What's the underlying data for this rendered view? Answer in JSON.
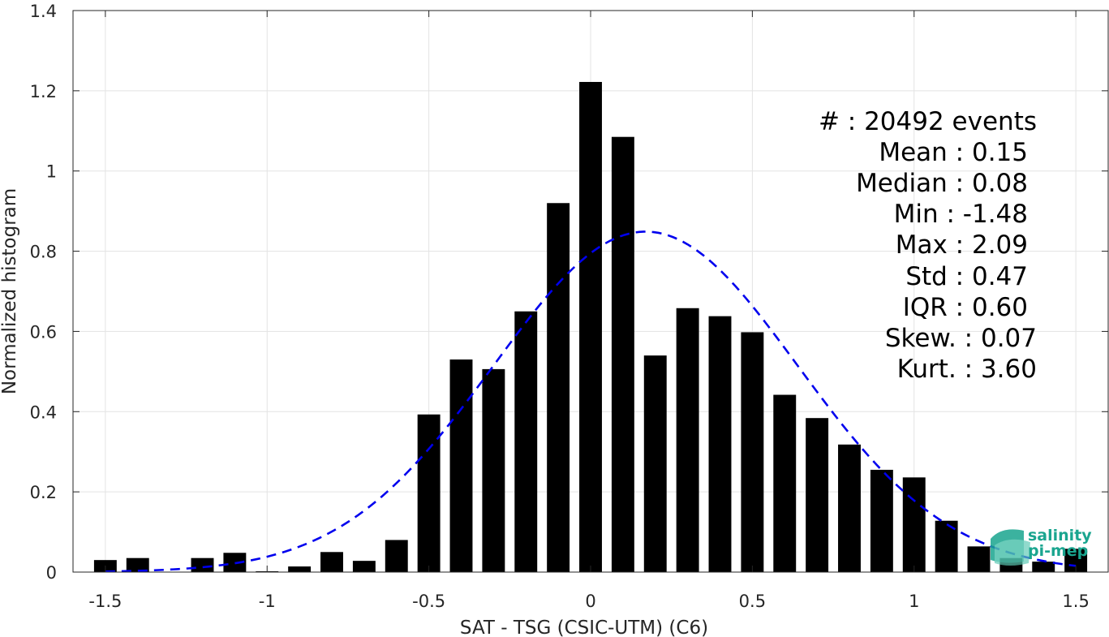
{
  "chart_data": {
    "type": "bar",
    "xlabel": "SAT - TSG (CSIC-UTM) (C6)",
    "ylabel": "Normalized histogram",
    "xlim": [
      -1.6,
      1.6
    ],
    "ylim": [
      0,
      1.4
    ],
    "grid": true,
    "x_ticks": [
      -1.5,
      -1,
      -0.5,
      0,
      0.5,
      1,
      1.5
    ],
    "x_tick_labels": [
      "-1.5",
      "-1",
      "-0.5",
      "0",
      "0.5",
      "1",
      "1.5"
    ],
    "y_ticks": [
      0,
      0.2,
      0.4,
      0.6,
      0.8,
      1,
      1.2,
      1.4
    ],
    "y_tick_labels": [
      "0",
      "0.2",
      "0.4",
      "0.6",
      "0.8",
      "1",
      "1.2",
      "1.4"
    ],
    "bar_width": 0.07,
    "bar_color": "#000000",
    "bars": [
      {
        "x": -1.5,
        "y": 0.03
      },
      {
        "x": -1.4,
        "y": 0.035
      },
      {
        "x": -1.3,
        "y": 0.0
      },
      {
        "x": -1.2,
        "y": 0.035
      },
      {
        "x": -1.1,
        "y": 0.048
      },
      {
        "x": -1.0,
        "y": 0.002
      },
      {
        "x": -0.9,
        "y": 0.014
      },
      {
        "x": -0.8,
        "y": 0.05
      },
      {
        "x": -0.7,
        "y": 0.028
      },
      {
        "x": -0.6,
        "y": 0.08
      },
      {
        "x": -0.5,
        "y": 0.393
      },
      {
        "x": -0.4,
        "y": 0.53
      },
      {
        "x": -0.3,
        "y": 0.506
      },
      {
        "x": -0.2,
        "y": 0.65
      },
      {
        "x": -0.1,
        "y": 0.92
      },
      {
        "x": 0.0,
        "y": 1.222
      },
      {
        "x": 0.1,
        "y": 1.085
      },
      {
        "x": 0.2,
        "y": 0.54
      },
      {
        "x": 0.3,
        "y": 0.658
      },
      {
        "x": 0.4,
        "y": 0.638
      },
      {
        "x": 0.5,
        "y": 0.598
      },
      {
        "x": 0.6,
        "y": 0.442
      },
      {
        "x": 0.7,
        "y": 0.384
      },
      {
        "x": 0.8,
        "y": 0.318
      },
      {
        "x": 0.9,
        "y": 0.255
      },
      {
        "x": 1.0,
        "y": 0.236
      },
      {
        "x": 1.1,
        "y": 0.128
      },
      {
        "x": 1.2,
        "y": 0.064
      },
      {
        "x": 1.3,
        "y": 0.035
      },
      {
        "x": 1.4,
        "y": 0.026
      },
      {
        "x": 1.5,
        "y": 0.058
      }
    ],
    "fit_curve": {
      "style": "dashed",
      "color": "#0000ee",
      "distribution": "normal",
      "mean": 0.17,
      "std": 0.47,
      "x_range": [
        -1.5,
        1.5
      ]
    },
    "stats_lines": [
      "#  : 20492 events",
      "Mean : 0.15",
      "Median : 0.08",
      "Min : -1.48",
      "Max : 2.09",
      "Std : 0.47",
      "IQR : 0.60",
      "Skew. : 0.07",
      "Kurt. : 3.60"
    ]
  },
  "logo": {
    "line1": "salinity",
    "line2": "pi-mep",
    "color": "#1aa58f"
  }
}
